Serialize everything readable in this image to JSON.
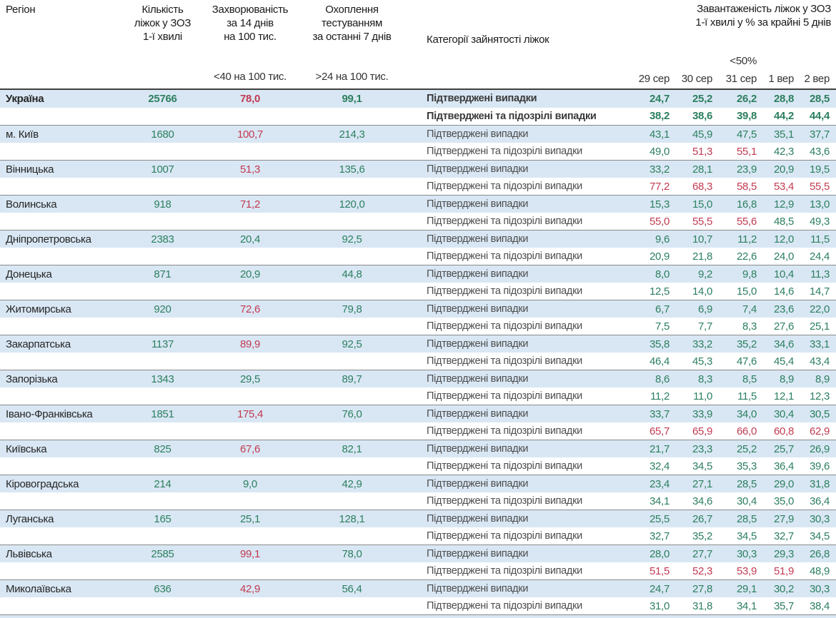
{
  "table": {
    "columns": {
      "region_label": "Регіон",
      "beds_label": "Кількість\nліжок у ЗОЗ\n1-ї хвилі",
      "incidence_label": "Захворюваність\nза 14 днів\nна 100 тис.",
      "testing_label": "Охоплення\nтестуванням\nза останні 7 днів",
      "category_label": "Категорії зайнятості ліжок",
      "load_label": "Завантаженість ліжок у ЗОЗ\n1-ї хвилі у % за крайні 5 днів",
      "incidence_threshold_label": "<40 на 100 тис.",
      "testing_threshold_label": ">24 на 100 тис.",
      "load_threshold_label": "<50%"
    },
    "dates": [
      "29 сер",
      "30 сер",
      "31 сер",
      "1 вер",
      "2 вер"
    ],
    "categories": [
      "Підтверджені випадки",
      "Підтверджені та підозрілі випадки"
    ],
    "thresholds": {
      "incidence_red_above": 40,
      "load_red_above": 50
    },
    "colors": {
      "good": "#2c7f5f",
      "alert": "#c13b51",
      "row_highlight": "#d9e7f4"
    },
    "regions": [
      {
        "name": "Україна",
        "beds": "25766",
        "incidence": "78,0",
        "testing": "99,1",
        "confirmed": [
          "24,7",
          "25,2",
          "26,2",
          "28,8",
          "28,5"
        ],
        "suspected": [
          "38,2",
          "38,6",
          "39,8",
          "44,2",
          "44,4"
        ]
      },
      {
        "name": "м. Київ",
        "beds": "1680",
        "incidence": "100,7",
        "testing": "214,3",
        "confirmed": [
          "43,1",
          "45,9",
          "47,5",
          "35,1",
          "37,7"
        ],
        "suspected": [
          "49,0",
          "51,3",
          "55,1",
          "42,3",
          "43,6"
        ]
      },
      {
        "name": "Вінницька",
        "beds": "1007",
        "incidence": "51,3",
        "testing": "135,6",
        "confirmed": [
          "33,2",
          "28,1",
          "23,9",
          "20,9",
          "19,5"
        ],
        "suspected": [
          "77,2",
          "68,3",
          "58,5",
          "53,4",
          "55,5"
        ]
      },
      {
        "name": "Волинська",
        "beds": "918",
        "incidence": "71,2",
        "testing": "120,0",
        "confirmed": [
          "15,3",
          "15,0",
          "16,8",
          "12,9",
          "13,0"
        ],
        "suspected": [
          "55,0",
          "55,5",
          "55,6",
          "48,5",
          "49,3"
        ]
      },
      {
        "name": "Дніпропетровська",
        "beds": "2383",
        "incidence": "20,4",
        "testing": "92,5",
        "confirmed": [
          "9,6",
          "10,7",
          "11,2",
          "12,0",
          "11,5"
        ],
        "suspected": [
          "20,9",
          "21,8",
          "22,6",
          "24,0",
          "24,4"
        ]
      },
      {
        "name": "Донецька",
        "beds": "871",
        "incidence": "20,9",
        "testing": "44,8",
        "confirmed": [
          "8,0",
          "9,2",
          "9,8",
          "10,4",
          "11,3"
        ],
        "suspected": [
          "12,5",
          "14,0",
          "15,0",
          "14,6",
          "14,7"
        ]
      },
      {
        "name": "Житомирська",
        "beds": "920",
        "incidence": "72,6",
        "testing": "79,8",
        "confirmed": [
          "6,7",
          "6,9",
          "7,4",
          "23,6",
          "22,0"
        ],
        "suspected": [
          "7,5",
          "7,7",
          "8,3",
          "27,6",
          "25,1"
        ]
      },
      {
        "name": "Закарпатська",
        "beds": "1137",
        "incidence": "89,9",
        "testing": "92,5",
        "confirmed": [
          "35,8",
          "33,2",
          "35,2",
          "34,6",
          "33,1"
        ],
        "suspected": [
          "46,4",
          "45,3",
          "47,6",
          "45,4",
          "43,4"
        ]
      },
      {
        "name": "Запорізька",
        "beds": "1343",
        "incidence": "29,5",
        "testing": "89,7",
        "confirmed": [
          "8,6",
          "8,3",
          "8,5",
          "8,9",
          "8,9"
        ],
        "suspected": [
          "11,2",
          "11,0",
          "11,5",
          "12,1",
          "12,3"
        ]
      },
      {
        "name": "Івано-Франківська",
        "beds": "1851",
        "incidence": "175,4",
        "testing": "76,0",
        "confirmed": [
          "33,7",
          "33,9",
          "34,0",
          "30,4",
          "30,5"
        ],
        "suspected": [
          "65,7",
          "65,9",
          "66,0",
          "60,8",
          "62,9"
        ]
      },
      {
        "name": "Київська",
        "beds": "825",
        "incidence": "67,6",
        "testing": "82,1",
        "confirmed": [
          "21,7",
          "23,3",
          "25,2",
          "25,7",
          "26,9"
        ],
        "suspected": [
          "32,4",
          "34,5",
          "35,3",
          "36,4",
          "39,6"
        ]
      },
      {
        "name": "Кіровоградська",
        "beds": "214",
        "incidence": "9,0",
        "testing": "42,9",
        "confirmed": [
          "23,4",
          "27,1",
          "28,5",
          "29,0",
          "31,8"
        ],
        "suspected": [
          "34,1",
          "34,6",
          "30,4",
          "35,0",
          "36,4"
        ]
      },
      {
        "name": "Луганська",
        "beds": "165",
        "incidence": "25,1",
        "testing": "128,1",
        "confirmed": [
          "25,5",
          "26,7",
          "28,5",
          "27,9",
          "30,3"
        ],
        "suspected": [
          "32,7",
          "35,2",
          "34,5",
          "32,7",
          "34,5"
        ]
      },
      {
        "name": "Львівська",
        "beds": "2585",
        "incidence": "99,1",
        "testing": "78,0",
        "confirmed": [
          "28,0",
          "27,7",
          "30,3",
          "29,3",
          "26,8"
        ],
        "suspected": [
          "51,5",
          "52,3",
          "53,9",
          "51,9",
          "48,9"
        ]
      },
      {
        "name": "Миколаївська",
        "beds": "636",
        "incidence": "42,9",
        "testing": "56,4",
        "confirmed": [
          "24,7",
          "27,8",
          "29,1",
          "30,2",
          "30,3"
        ],
        "suspected": [
          "31,0",
          "31,8",
          "34,1",
          "35,7",
          "38,4"
        ]
      }
    ]
  }
}
